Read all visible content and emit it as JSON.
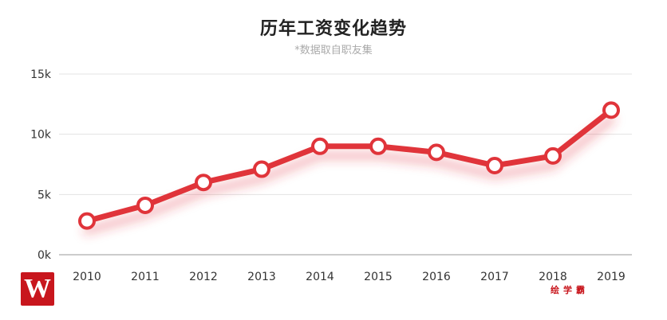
{
  "chart_data": {
    "type": "line",
    "title": "历年工资变化趋势",
    "subtitle": "*数据取自职友集",
    "categories": [
      "2010",
      "2011",
      "2012",
      "2013",
      "2014",
      "2015",
      "2016",
      "2017",
      "2018",
      "2019"
    ],
    "series": [
      {
        "values": [
          2800,
          4100,
          6000,
          7100,
          9000,
          9000,
          8500,
          7400,
          8200,
          12000
        ],
        "color": "#e0343a"
      }
    ],
    "ylim": [
      0,
      15000
    ],
    "yticks": [
      0,
      5000,
      10000,
      15000
    ],
    "ytick_labels": [
      "0k",
      "5k",
      "10k",
      "15k"
    ],
    "grid": true,
    "xlabel": "",
    "ylabel": ""
  },
  "logo": {
    "letter": "W"
  },
  "watermark": {
    "text": "绘学霸"
  }
}
